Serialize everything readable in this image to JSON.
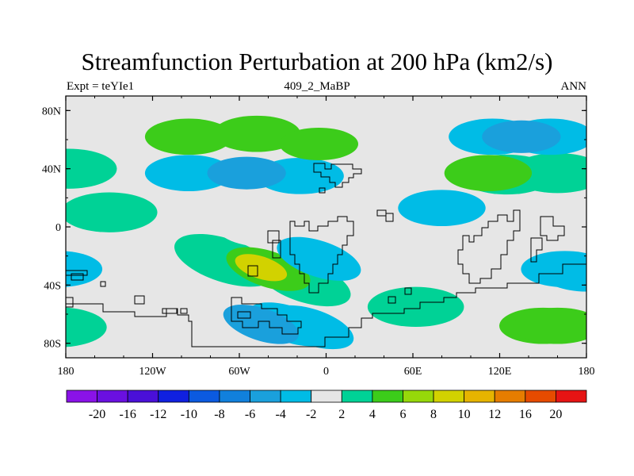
{
  "chart_data": {
    "type": "heatmap",
    "title": "Streamfunction Perturbation at 200 hPa (km2/s)",
    "subtitle_left": "Expt = teYIe1",
    "subtitle_center": "409_2_MaBP",
    "subtitle_right": "ANN",
    "x_tick_labels": [
      "180",
      "120W",
      "60W",
      "0",
      "60E",
      "120E",
      "180"
    ],
    "x_tick_values": [
      -180,
      -120,
      -60,
      0,
      60,
      120,
      180
    ],
    "y_tick_labels": [
      "80N",
      "40N",
      "0",
      "40S",
      "80S"
    ],
    "y_tick_values": [
      80,
      40,
      0,
      -40,
      -80
    ],
    "xlim": [
      -180,
      180
    ],
    "ylim": [
      -90,
      90
    ],
    "colorbar_labels": [
      "-20",
      "-16",
      "-12",
      "-10",
      "-8",
      "-6",
      "-4",
      "-2",
      "2",
      "4",
      "6",
      "8",
      "10",
      "12",
      "16",
      "20"
    ],
    "colorbar_levels": [
      -20,
      -16,
      -12,
      -10,
      -8,
      -6,
      -4,
      -2,
      2,
      4,
      6,
      8,
      10,
      12,
      16,
      20
    ],
    "colorbar_colors": [
      "#8a12e8",
      "#6a10e0",
      "#4a10d8",
      "#1020e0",
      "#0b5ae0",
      "#1180dc",
      "#1aa0dc",
      "#00bce6",
      "#e6e6e6",
      "#00d296",
      "#3ccc1a",
      "#96d80a",
      "#d2d200",
      "#e6b400",
      "#e67d00",
      "#e64b00",
      "#e61414"
    ],
    "background_color": "#e6e6e6",
    "anomalies": [
      {
        "lon": -95,
        "lat": 62,
        "value": 4
      },
      {
        "lon": -48,
        "lat": 64,
        "value": 4
      },
      {
        "lon": -5,
        "lat": 57,
        "value": 5
      },
      {
        "lon": -150,
        "lat": 10,
        "value": 3
      },
      {
        "lon": -178,
        "lat": 40,
        "value": 3
      },
      {
        "lon": -95,
        "lat": 37,
        "value": -4
      },
      {
        "lon": -55,
        "lat": 37,
        "value": -5
      },
      {
        "lon": -18,
        "lat": 35,
        "value": -4
      },
      {
        "lon": 115,
        "lat": 62,
        "value": -4
      },
      {
        "lon": 135,
        "lat": 62,
        "value": -5
      },
      {
        "lon": 155,
        "lat": 62,
        "value": -4
      },
      {
        "lon": 112,
        "lat": 37,
        "value": 4
      },
      {
        "lon": 125,
        "lat": 36,
        "value": 3
      },
      {
        "lon": 160,
        "lat": 37,
        "value": 3
      },
      {
        "lon": 80,
        "lat": 13,
        "value": -4
      },
      {
        "lon": -40,
        "lat": -29,
        "value": 4
      },
      {
        "lon": -70,
        "lat": -23,
        "value": 2
      },
      {
        "lon": -45,
        "lat": -28,
        "value": 8
      },
      {
        "lon": -15,
        "lat": -38,
        "value": 3
      },
      {
        "lon": -5,
        "lat": -22,
        "value": -4
      },
      {
        "lon": -40,
        "lat": 1,
        "value": -2
      },
      {
        "lon": -25,
        "lat": -67,
        "value": -4
      },
      {
        "lon": -45,
        "lat": -67,
        "value": -5
      },
      {
        "lon": -10,
        "lat": -69,
        "value": -4
      },
      {
        "lon": 62,
        "lat": -55,
        "value": 3
      },
      {
        "lon": -185,
        "lat": -29,
        "value": -4
      },
      {
        "lon": -185,
        "lat": -69,
        "value": 3
      },
      {
        "lon": 165,
        "lat": -29,
        "value": -4
      },
      {
        "lon": 180,
        "lat": -32,
        "value": -4
      },
      {
        "lon": 150,
        "lat": -68,
        "value": 4
      },
      {
        "lon": 160,
        "lat": -68,
        "value": 4
      }
    ]
  }
}
